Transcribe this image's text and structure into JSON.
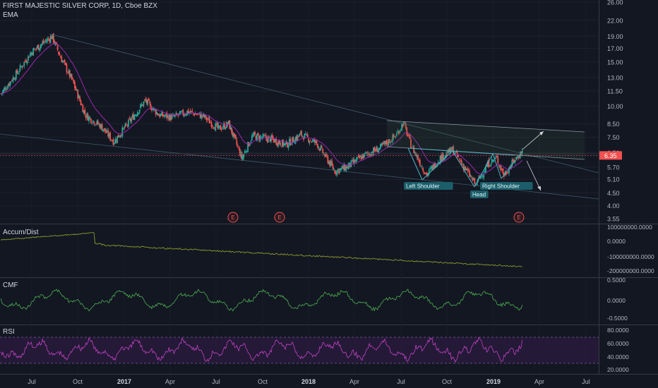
{
  "header": {
    "title": "FIRST MAJESTIC SILVER CORP, 1D, Cboe BZX",
    "indicator": "EMA"
  },
  "panes": {
    "accum": "Accum/Dist",
    "cmf": "CMF",
    "rsi": "RSI"
  },
  "colors": {
    "background": "#131722",
    "up": "#26a69a",
    "down": "#ef5350",
    "ema": "#9c27b0",
    "channel": "#5d8a96",
    "accum_line": "#8a9a2a",
    "cmf_line": "#4caf50",
    "rsi_line": "#c044c0",
    "rsi_band": "#2a1a3e",
    "price_badge": "#f05050"
  },
  "chart_data": [
    {
      "type": "candlestick",
      "title": "FIRST MAJESTIC SILVER CORP, 1D, Cboe BZX",
      "y_scale": "log",
      "price_ticks": [
        "26.00",
        "22.00",
        "19.00",
        "17.00",
        "15.00",
        "13.00",
        "11.50",
        "10.00",
        "8.50",
        "7.50",
        "6.50",
        "5.70",
        "5.10",
        "4.50",
        "4.00",
        "3.55"
      ],
      "last_price": "6.35",
      "x_ticks": [
        "Jul",
        "Oct",
        "2017",
        "Apr",
        "Jul",
        "Oct",
        "2018",
        "Apr",
        "Jul",
        "Oct",
        "2019",
        "Apr",
        "Jul"
      ],
      "price_path": [
        {
          "x": "2016-05-01",
          "y": 11.2
        },
        {
          "x": "2016-06-01",
          "y": 13.5
        },
        {
          "x": "2016-07-01",
          "y": 16.5
        },
        {
          "x": "2016-08-10",
          "y": 19.0
        },
        {
          "x": "2016-08-25",
          "y": 16.0
        },
        {
          "x": "2016-09-20",
          "y": 12.5
        },
        {
          "x": "2016-10-15",
          "y": 9.2
        },
        {
          "x": "2016-11-15",
          "y": 8.3
        },
        {
          "x": "2016-12-10",
          "y": 7.2
        },
        {
          "x": "2017-01-05",
          "y": 8.4
        },
        {
          "x": "2017-02-10",
          "y": 10.5
        },
        {
          "x": "2017-03-10",
          "y": 9.2
        },
        {
          "x": "2017-04-05",
          "y": 9.0
        },
        {
          "x": "2017-05-05",
          "y": 9.5
        },
        {
          "x": "2017-06-05",
          "y": 9.1
        },
        {
          "x": "2017-07-05",
          "y": 8.1
        },
        {
          "x": "2017-07-25",
          "y": 8.5
        },
        {
          "x": "2017-08-20",
          "y": 6.2
        },
        {
          "x": "2017-09-10",
          "y": 7.6
        },
        {
          "x": "2017-10-15",
          "y": 7.4
        },
        {
          "x": "2017-11-15",
          "y": 7.0
        },
        {
          "x": "2017-12-15",
          "y": 7.7
        },
        {
          "x": "2018-01-15",
          "y": 7.1
        },
        {
          "x": "2018-02-20",
          "y": 5.5
        },
        {
          "x": "2018-03-15",
          "y": 5.7
        },
        {
          "x": "2018-04-15",
          "y": 6.3
        },
        {
          "x": "2018-05-20",
          "y": 6.8
        },
        {
          "x": "2018-06-20",
          "y": 7.6
        },
        {
          "x": "2018-07-05",
          "y": 8.6
        },
        {
          "x": "2018-07-20",
          "y": 7.0
        },
        {
          "x": "2018-08-20",
          "y": 5.3
        },
        {
          "x": "2018-09-15",
          "y": 6.2
        },
        {
          "x": "2018-10-10",
          "y": 6.7
        },
        {
          "x": "2018-11-05",
          "y": 5.6
        },
        {
          "x": "2018-11-25",
          "y": 4.85
        },
        {
          "x": "2018-12-20",
          "y": 5.9
        },
        {
          "x": "2019-01-05",
          "y": 6.2
        },
        {
          "x": "2019-01-20",
          "y": 5.3
        },
        {
          "x": "2019-02-10",
          "y": 6.1
        },
        {
          "x": "2019-02-25",
          "y": 6.6
        }
      ],
      "annotations": [
        "Left Shoulder",
        "Head",
        "Right Shoulder"
      ],
      "earnings_markers": [
        "E",
        "E",
        "E"
      ],
      "xlabel": "",
      "ylabel": ""
    },
    {
      "type": "line",
      "title": "Accum/Dist",
      "y_ticks": [
        "100000000.0000",
        "0.0000",
        "-100000000.0000",
        "-200000000.0000"
      ]
    },
    {
      "type": "line",
      "title": "CMF",
      "y_ticks": [
        "0.5000",
        "0.0000",
        "-0.5000"
      ]
    },
    {
      "type": "line",
      "title": "RSI",
      "y_ticks": [
        "80.0000",
        "60.0000",
        "40.0000",
        "20.0000"
      ]
    }
  ]
}
